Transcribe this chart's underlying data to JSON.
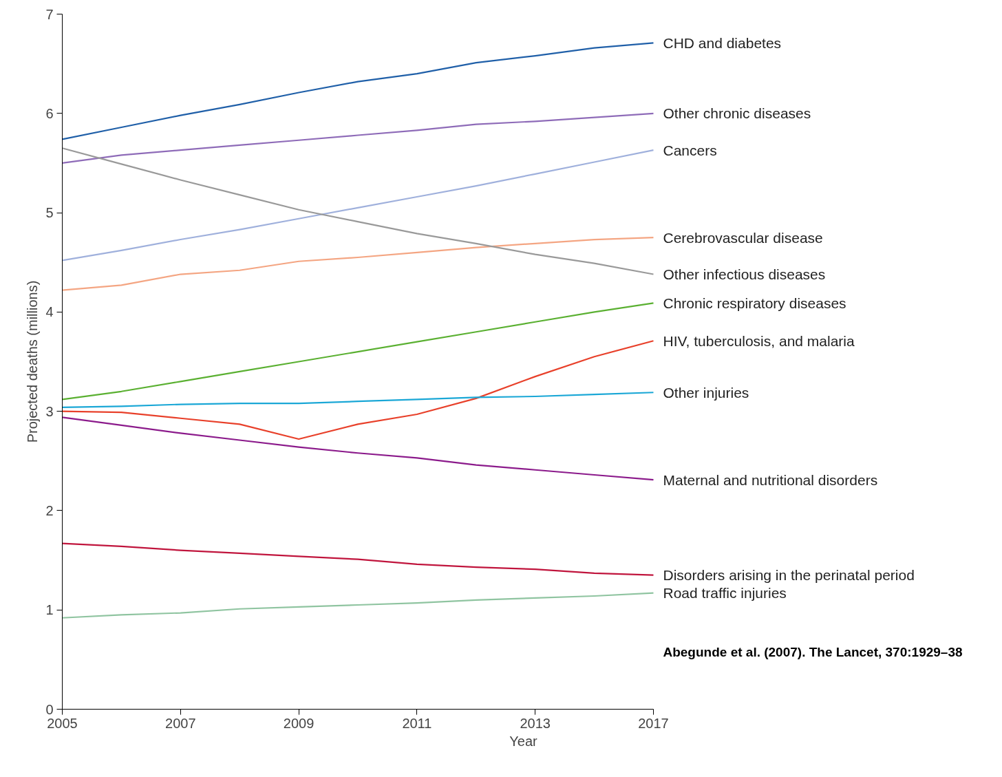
{
  "chart_data": {
    "type": "line",
    "xlabel": "Year",
    "ylabel": "Projected deaths (millions)",
    "categories": [
      "2005",
      null,
      "2007",
      null,
      "2009",
      null,
      "2011",
      null,
      "2013",
      null,
      "2017"
    ],
    "ylim": [
      0,
      7
    ],
    "yticks": [
      0,
      1,
      2,
      3,
      4,
      5,
      6,
      7
    ],
    "grid": false,
    "legend": false,
    "marker": "none",
    "line_style": "solid",
    "series": [
      {
        "name": "CHD and diabetes",
        "color": "#1f5fa8",
        "values": [
          5.74,
          5.86,
          5.98,
          6.09,
          6.21,
          6.32,
          6.4,
          6.51,
          6.58,
          6.66,
          6.71
        ]
      },
      {
        "name": "Other chronic diseases",
        "color": "#8e6bb8",
        "values": [
          5.5,
          5.58,
          5.63,
          5.68,
          5.73,
          5.78,
          5.83,
          5.89,
          5.92,
          5.96,
          6.0
        ]
      },
      {
        "name": "Cancers",
        "color": "#9fb0dc",
        "values": [
          4.52,
          4.62,
          4.73,
          4.83,
          4.94,
          5.05,
          5.16,
          5.27,
          5.39,
          5.51,
          5.63
        ]
      },
      {
        "name": "Cerebrovascular disease",
        "color": "#f4a582",
        "values": [
          4.22,
          4.27,
          4.38,
          4.42,
          4.51,
          4.55,
          4.6,
          4.65,
          4.69,
          4.73,
          4.75
        ]
      },
      {
        "name": "Other infectious diseases",
        "color": "#999999",
        "values": [
          5.65,
          5.49,
          5.33,
          5.18,
          5.03,
          4.91,
          4.79,
          4.69,
          4.58,
          4.49,
          4.38
        ]
      },
      {
        "name": "Chronic respiratory diseases",
        "color": "#5ab031",
        "values": [
          3.12,
          3.2,
          3.3,
          3.4,
          3.5,
          3.6,
          3.7,
          3.8,
          3.9,
          4.0,
          4.09
        ]
      },
      {
        "name": "HIV, tuberculosis, and malaria",
        "color": "#e8402a",
        "values": [
          3.0,
          2.99,
          2.93,
          2.87,
          2.72,
          2.87,
          2.97,
          3.13,
          3.35,
          3.55,
          3.71
        ]
      },
      {
        "name": "Other injuries",
        "color": "#1aa7d6",
        "values": [
          3.04,
          3.05,
          3.07,
          3.08,
          3.08,
          3.1,
          3.12,
          3.14,
          3.15,
          3.17,
          3.19
        ]
      },
      {
        "name": "Maternal and nutritional disorders",
        "color": "#8b1a8b",
        "values": [
          2.94,
          2.86,
          2.78,
          2.71,
          2.64,
          2.58,
          2.53,
          2.46,
          2.41,
          2.36,
          2.31
        ]
      },
      {
        "name": "Disorders arising in the perinatal period",
        "color": "#c0143c",
        "values": [
          1.67,
          1.64,
          1.6,
          1.57,
          1.54,
          1.51,
          1.46,
          1.43,
          1.41,
          1.37,
          1.35
        ]
      },
      {
        "name": "Road traffic injuries",
        "color": "#8fc4a0",
        "values": [
          0.92,
          0.95,
          0.97,
          1.01,
          1.03,
          1.05,
          1.07,
          1.1,
          1.12,
          1.14,
          1.17
        ]
      }
    ],
    "annotations": [
      "Abegunde et al. (2007). The Lancet, 370:1929–38"
    ]
  }
}
